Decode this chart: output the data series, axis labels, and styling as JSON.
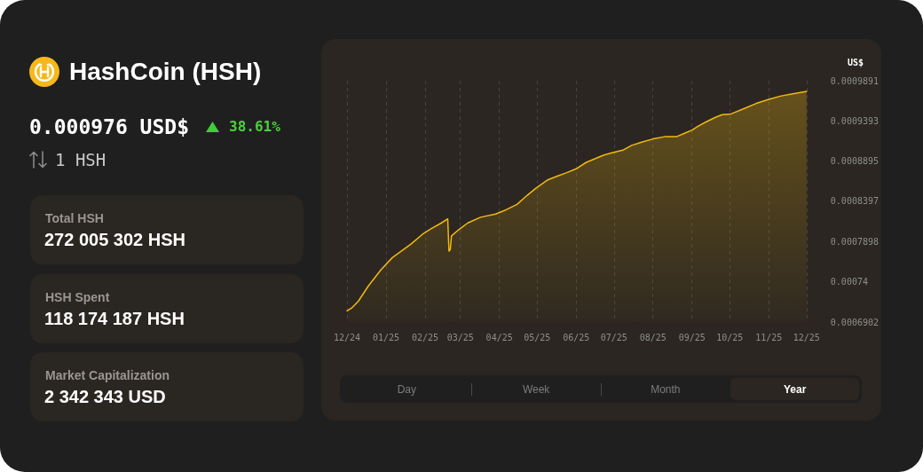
{
  "chart_data": [
    {
      "type": "other",
      "title": "HashCoin (HSH)",
      "annotations": [
        "0.000976 USD$",
        "38.61%",
        "1 HSH",
        "Total HSH",
        "272 005 302 HSH",
        "HSH Spent",
        "118 174 187 HSH",
        "Market Capitalization",
        "2 342 343 USD"
      ]
    },
    {
      "type": "area",
      "ylabel": "US$",
      "color": "#f2b90f",
      "x": [
        "2024-12-01",
        "2024-12-05",
        "2024-12-10",
        "2024-12-18",
        "2024-12-28",
        "2025-01-06",
        "2025-01-14",
        "2025-01-21",
        "2025-01-30",
        "2025-02-06",
        "2025-02-14",
        "2025-02-19",
        "2025-02-20",
        "2025-02-21",
        "2025-02-22",
        "2025-02-28",
        "2025-03-07",
        "2025-03-17",
        "2025-03-29",
        "2025-04-06",
        "2025-04-15",
        "2025-04-23",
        "2025-04-30",
        "2025-05-09",
        "2025-05-17",
        "2025-05-24",
        "2025-06-01",
        "2025-06-09",
        "2025-06-23",
        "2025-06-30",
        "2025-07-08",
        "2025-07-15",
        "2025-07-23",
        "2025-08-01",
        "2025-08-11",
        "2025-08-20",
        "2025-08-26",
        "2025-09-01",
        "2025-09-06",
        "2025-09-12",
        "2025-09-20",
        "2025-09-25",
        "2025-10-02",
        "2025-10-13",
        "2025-10-22",
        "2025-11-01",
        "2025-11-10",
        "2025-11-20",
        "2025-12-01"
      ],
      "values": [
        0.000704,
        0.000708,
        0.000716,
        0.000735,
        0.000755,
        0.00077,
        0.000779,
        0.000787,
        0.000799,
        0.000806,
        0.000813,
        0.000818,
        0.000778,
        0.00078,
        0.000797,
        0.000805,
        0.000813,
        0.00082,
        0.000824,
        0.000829,
        0.000836,
        0.000847,
        0.000856,
        0.000866,
        0.000871,
        0.000875,
        0.00088,
        0.000888,
        0.000897,
        0.0009,
        0.000903,
        0.000909,
        0.000913,
        0.000917,
        0.00092,
        0.00092,
        0.000924,
        0.000928,
        0.000933,
        0.000938,
        0.000944,
        0.000947,
        0.000948,
        0.000955,
        0.000961,
        0.000966,
        0.00097,
        0.000973,
        0.000976
      ],
      "xlim": [
        "2024-12-01",
        "2025-12-01"
      ],
      "xticks": [
        {
          "value": "2024-12-01",
          "label": "12/24"
        },
        {
          "value": "2025-01-01",
          "label": "01/25"
        },
        {
          "value": "2025-02-01",
          "label": "02/25"
        },
        {
          "value": "2025-03-01",
          "label": "03/25"
        },
        {
          "value": "2025-04-01",
          "label": "04/25"
        },
        {
          "value": "2025-05-01",
          "label": "05/25"
        },
        {
          "value": "2025-06-01",
          "label": "06/25"
        },
        {
          "value": "2025-07-01",
          "label": "07/25"
        },
        {
          "value": "2025-08-01",
          "label": "08/25"
        },
        {
          "value": "2025-09-01",
          "label": "09/25"
        },
        {
          "value": "2025-10-01",
          "label": "10/25"
        },
        {
          "value": "2025-11-01",
          "label": "11/25"
        },
        {
          "value": "2025-12-01",
          "label": "12/25"
        }
      ],
      "ylim": [
        0.0006902,
        0.0009891
      ],
      "yticks": [
        0.0006902,
        0.00074,
        0.0007898,
        0.0008397,
        0.0008895,
        0.0009393,
        0.0009891
      ],
      "grid": "x",
      "annotations": [
        "Day",
        "Week",
        "Month",
        "Year"
      ]
    }
  ]
}
